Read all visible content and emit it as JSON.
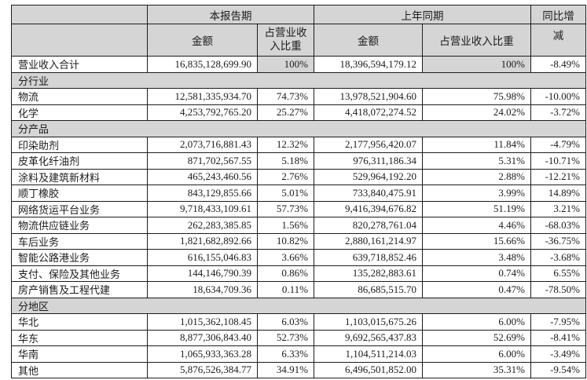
{
  "table": {
    "header": {
      "current_period": "本报告期",
      "prior_period": "上年同期",
      "yoy_line1": "同比增",
      "yoy_line2": "减",
      "amount": "金额",
      "pct_current": "占营业收\n入比重",
      "pct_prior": "占营业收入比重"
    },
    "rows": [
      {
        "type": "data",
        "label": "营业收入合计",
        "cur_amount": "16,835,128,699.90",
        "cur_pct": "100%",
        "prior_amount": "18,396,594,179.12",
        "prior_pct": "100%",
        "yoy": "-8.49%",
        "pct_shaded": true
      },
      {
        "type": "section",
        "label": "分行业"
      },
      {
        "type": "data",
        "label": "物流",
        "cur_amount": "12,581,335,934.70",
        "cur_pct": "74.73%",
        "prior_amount": "13,978,521,904.60",
        "prior_pct": "75.98%",
        "yoy": "-10.00%"
      },
      {
        "type": "data",
        "label": "化学",
        "cur_amount": "4,253,792,765.20",
        "cur_pct": "25.27%",
        "prior_amount": "4,418,072,274.52",
        "prior_pct": "24.02%",
        "yoy": "-3.72%"
      },
      {
        "type": "section",
        "label": "分产品"
      },
      {
        "type": "data",
        "label": "印染助剂",
        "cur_amount": "2,073,716,881.43",
        "cur_pct": "12.32%",
        "prior_amount": "2,177,956,420.07",
        "prior_pct": "11.84%",
        "yoy": "-4.79%"
      },
      {
        "type": "data",
        "label": "皮革化纤油剂",
        "cur_amount": "871,702,567.55",
        "cur_pct": "5.18%",
        "prior_amount": "976,311,186.34",
        "prior_pct": "5.31%",
        "yoy": "-10.71%"
      },
      {
        "type": "data",
        "label": "涂料及建筑新材料",
        "cur_amount": "465,243,460.56",
        "cur_pct": "2.76%",
        "prior_amount": "529,964,192.20",
        "prior_pct": "2.88%",
        "yoy": "-12.21%"
      },
      {
        "type": "data",
        "label": "顺丁橡胶",
        "cur_amount": "843,129,855.66",
        "cur_pct": "5.01%",
        "prior_amount": "733,840,475.91",
        "prior_pct": "3.99%",
        "yoy": "14.89%"
      },
      {
        "type": "data",
        "label": "网络货运平台业务",
        "cur_amount": "9,718,433,109.61",
        "cur_pct": "57.73%",
        "prior_amount": "9,416,394,676.82",
        "prior_pct": "51.19%",
        "yoy": "3.21%"
      },
      {
        "type": "data",
        "label": "物流供应链业务",
        "cur_amount": "262,283,385.85",
        "cur_pct": "1.56%",
        "prior_amount": "820,278,761.04",
        "prior_pct": "4.46%",
        "yoy": "-68.03%"
      },
      {
        "type": "data",
        "label": "车后业务",
        "cur_amount": "1,821,682,892.66",
        "cur_pct": "10.82%",
        "prior_amount": "2,880,161,214.97",
        "prior_pct": "15.66%",
        "yoy": "-36.75%"
      },
      {
        "type": "data",
        "label": "智能公路港业务",
        "cur_amount": "616,155,046.83",
        "cur_pct": "3.66%",
        "prior_amount": "639,718,852.46",
        "prior_pct": "3.48%",
        "yoy": "-3.68%"
      },
      {
        "type": "data",
        "label": "支付、保险及其他业务",
        "cur_amount": "144,146,790.39",
        "cur_pct": "0.86%",
        "prior_amount": "135,282,883.61",
        "prior_pct": "0.74%",
        "yoy": "6.55%"
      },
      {
        "type": "data",
        "label": "房产销售及工程代建",
        "cur_amount": "18,634,709.36",
        "cur_pct": "0.11%",
        "prior_amount": "86,685,515.70",
        "prior_pct": "0.47%",
        "yoy": "-78.50%"
      },
      {
        "type": "section",
        "label": "分地区"
      },
      {
        "type": "data",
        "label": "华北",
        "cur_amount": "1,015,362,108.45",
        "cur_pct": "6.03%",
        "prior_amount": "1,103,015,675.26",
        "prior_pct": "6.00%",
        "yoy": "-7.95%"
      },
      {
        "type": "data",
        "label": "华东",
        "cur_amount": "8,877,306,843.40",
        "cur_pct": "52.73%",
        "prior_amount": "9,692,565,437.83",
        "prior_pct": "52.69%",
        "yoy": "-8.41%"
      },
      {
        "type": "data",
        "label": "华南",
        "cur_amount": "1,065,933,363.28",
        "cur_pct": "6.33%",
        "prior_amount": "1,104,511,214.03",
        "prior_pct": "6.00%",
        "yoy": "-3.49%"
      },
      {
        "type": "data",
        "label": "其他",
        "cur_amount": "5,876,526,384.77",
        "cur_pct": "34.91%",
        "prior_amount": "6,496,501,852.00",
        "prior_pct": "35.31%",
        "yoy": "-9.54%"
      }
    ]
  },
  "colors": {
    "header_bg": "#d5d5d5",
    "border": "#1c1c1c",
    "cell_bg": "#ffffff",
    "text": "#1b1b1b"
  }
}
